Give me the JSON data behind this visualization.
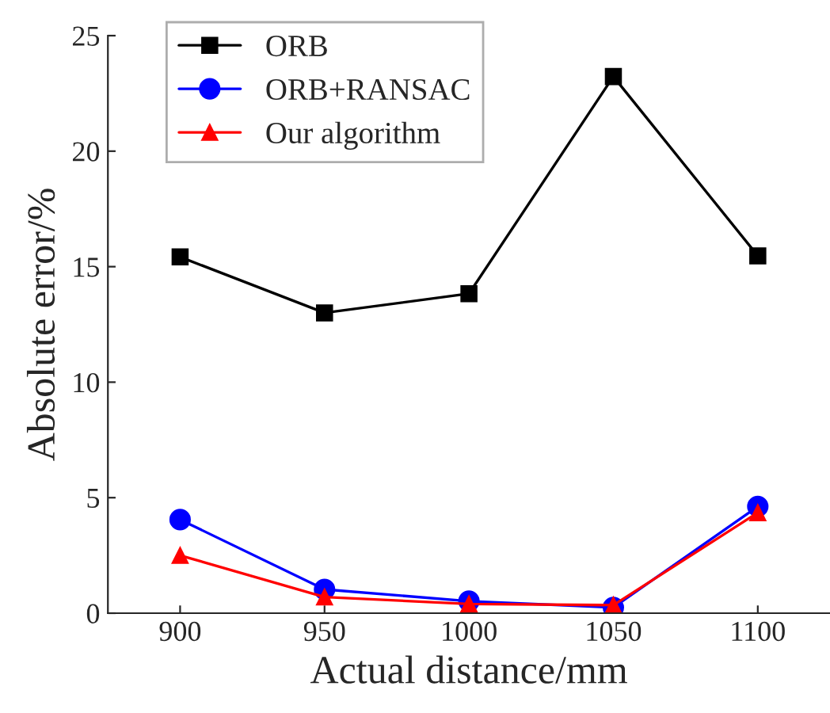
{
  "chart_data": {
    "type": "line",
    "xlabel": "Actual distance/mm",
    "ylabel": "Absolute error/%",
    "x": [
      900,
      950,
      1000,
      1050,
      1100
    ],
    "series": [
      {
        "name": "ORB",
        "color": "#000000",
        "marker": "square",
        "values": [
          15.42,
          13.0,
          13.83,
          23.23,
          15.47
        ]
      },
      {
        "name": "ORB+RANSAC",
        "color": "#0000ff",
        "marker": "circle",
        "values": [
          4.05,
          1.03,
          0.52,
          0.25,
          4.62
        ]
      },
      {
        "name": "Our algorithm",
        "color": "#ff0000",
        "marker": "triangle",
        "values": [
          2.5,
          0.7,
          0.4,
          0.35,
          4.35
        ]
      }
    ],
    "xlim": [
      875,
      1125
    ],
    "xticks": [
      900,
      950,
      1000,
      1050,
      1100
    ],
    "ylim": [
      0,
      25
    ],
    "yticks": [
      0,
      5,
      10,
      15,
      20,
      25
    ],
    "grid": false,
    "legend": "top left",
    "line_style": "solid"
  }
}
